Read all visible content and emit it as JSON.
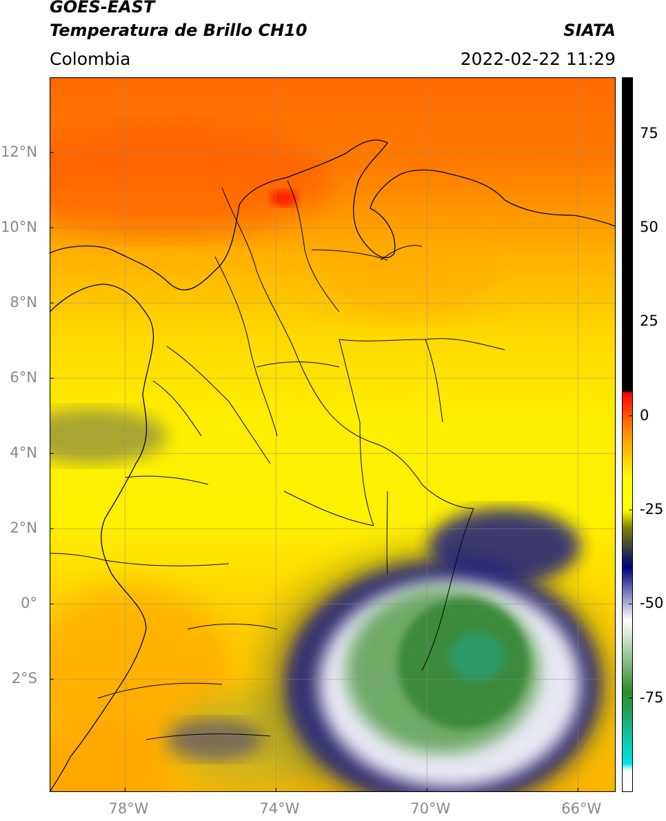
{
  "header": {
    "satellite": "GOES-EAST",
    "product": "Temperatura de Brillo CH10",
    "region": "Colombia",
    "agency": "SIATA",
    "timestamp": "2022-02-22 11:29"
  },
  "map": {
    "lon_range": [
      -80,
      -65
    ],
    "lat_range": [
      -5,
      14
    ],
    "lat_ticks": [
      {
        "value": 12,
        "label": "12°N"
      },
      {
        "value": 10,
        "label": "10°N"
      },
      {
        "value": 8,
        "label": "8°N"
      },
      {
        "value": 6,
        "label": "6°N"
      },
      {
        "value": 4,
        "label": "4°N"
      },
      {
        "value": 2,
        "label": "2°N"
      },
      {
        "value": 0,
        "label": "0°"
      },
      {
        "value": -2,
        "label": "2°S"
      }
    ],
    "lon_ticks": [
      {
        "value": -78,
        "label": "78°W"
      },
      {
        "value": -74,
        "label": "74°W"
      },
      {
        "value": -70,
        "label": "70°W"
      },
      {
        "value": -66,
        "label": "66°W"
      }
    ],
    "grid": true
  },
  "colorbar": {
    "range": [
      -100,
      90
    ],
    "ticks": [
      {
        "value": 75,
        "label": "75"
      },
      {
        "value": 50,
        "label": "50"
      },
      {
        "value": 25,
        "label": "25"
      },
      {
        "value": 0,
        "label": "0"
      },
      {
        "value": -25,
        "label": "-25"
      },
      {
        "value": -50,
        "label": "-50"
      },
      {
        "value": -75,
        "label": "-75"
      }
    ],
    "colors": {
      "black": "#000000",
      "red": "#ff0000",
      "orange": "#ff8000",
      "yellow": "#ffff00",
      "olive": "#808000",
      "navy": "#000080",
      "white": "#ffffff",
      "green": "#2e8b2e",
      "cyan": "#00e5e5"
    }
  }
}
